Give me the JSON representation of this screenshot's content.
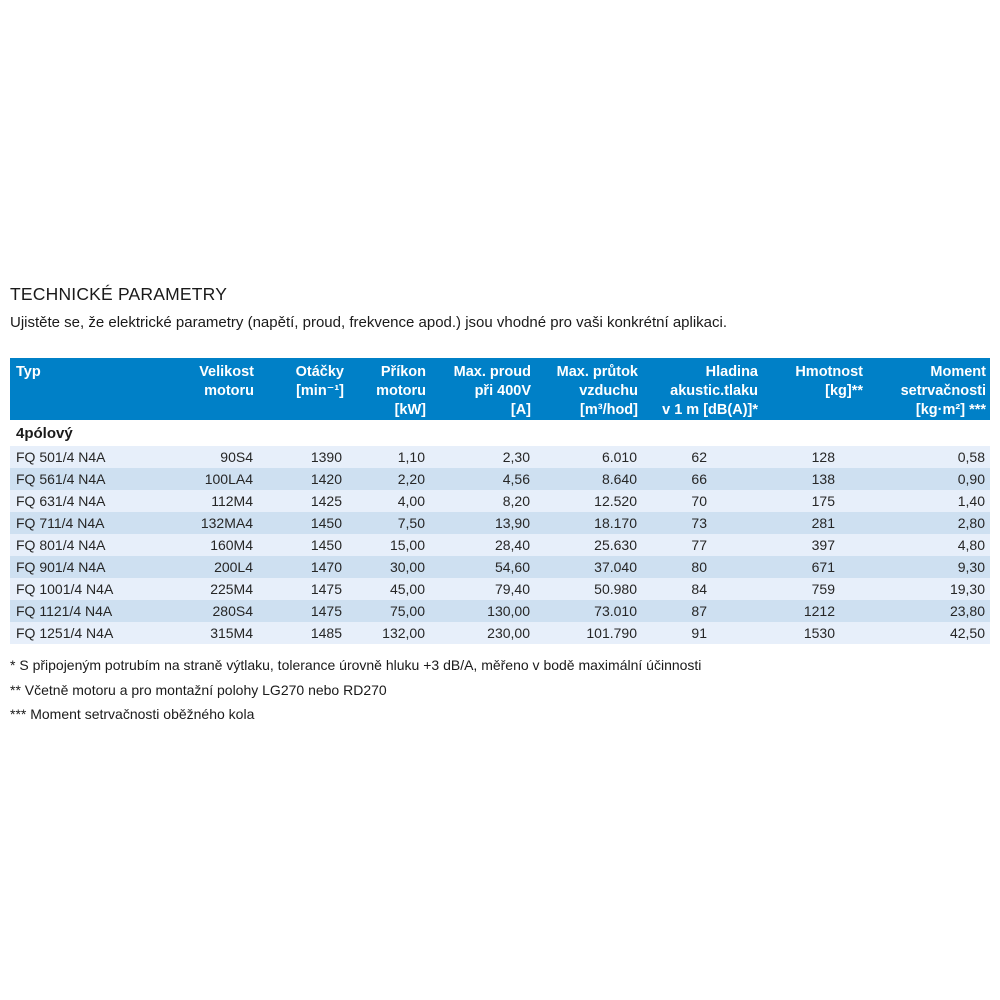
{
  "page": {
    "title": "TECHNICKÉ PARAMETRY",
    "intro": "Ujistěte se, že elektrické parametry (napětí, proud, frekvence apod.) jsou vhodné pro vaši konkrétní aplikaci."
  },
  "colors": {
    "header_bg": "#0080c7",
    "row_light": "#e7effa",
    "row_dark": "#cee0f1",
    "header_text": "#ffffff"
  },
  "table": {
    "headers": [
      [
        "Typ"
      ],
      [
        "Velikost",
        "motoru"
      ],
      [
        "Otáčky",
        "[min⁻¹]"
      ],
      [
        "Příkon",
        "motoru",
        "[kW]"
      ],
      [
        "Max. proud",
        "při 400V",
        "[A]"
      ],
      [
        "Max. průtok",
        "vzduchu",
        "[m³/hod]"
      ],
      [
        "Hladina",
        "akustic.tlaku",
        "v 1 m [dB(A)]*"
      ],
      [
        "Hmotnost",
        "[kg]**"
      ],
      [
        "Moment",
        "setrvačnosti",
        "[kg·m²] ***"
      ]
    ],
    "section_label": "4pólový",
    "rows": [
      [
        "FQ 501/4 N4A",
        "90S4",
        "1390",
        "1,10",
        "2,30",
        "6.010",
        "62",
        "128",
        "0,58"
      ],
      [
        "FQ 561/4 N4A",
        "100LA4",
        "1420",
        "2,20",
        "4,56",
        "8.640",
        "66",
        "138",
        "0,90"
      ],
      [
        "FQ 631/4 N4A",
        "112M4",
        "1425",
        "4,00",
        "8,20",
        "12.520",
        "70",
        "175",
        "1,40"
      ],
      [
        "FQ 711/4 N4A",
        "132MA4",
        "1450",
        "7,50",
        "13,90",
        "18.170",
        "73",
        "281",
        "2,80"
      ],
      [
        "FQ 801/4 N4A",
        "160M4",
        "1450",
        "15,00",
        "28,40",
        "25.630",
        "77",
        "397",
        "4,80"
      ],
      [
        "FQ 901/4 N4A",
        "200L4",
        "1470",
        "30,00",
        "54,60",
        "37.040",
        "80",
        "671",
        "9,30"
      ],
      [
        "FQ 1001/4 N4A",
        "225M4",
        "1475",
        "45,00",
        "79,40",
        "50.980",
        "84",
        "759",
        "19,30"
      ],
      [
        "FQ 1121/4 N4A",
        "280S4",
        "1475",
        "75,00",
        "130,00",
        "73.010",
        "87",
        "1212",
        "23,80"
      ],
      [
        "FQ 1251/4 N4A",
        "315M4",
        "1485",
        "132,00",
        "230,00",
        "101.790",
        "91",
        "1530",
        "42,50"
      ]
    ]
  },
  "footnotes": [
    "* S připojeným potrubím na straně výtlaku, tolerance úrovně hluku +3 dB/A, měřeno v bodě maximální účinnosti",
    "** Včetně motoru a pro montažní polohy LG270 nebo RD270",
    "*** Moment setrvačnosti oběžného kola"
  ]
}
